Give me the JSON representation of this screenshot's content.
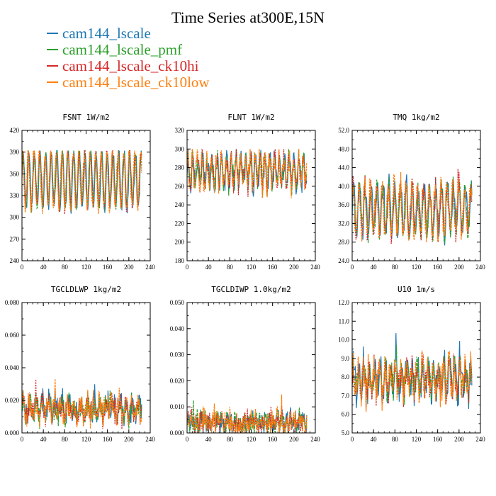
{
  "title": "Time Series at300E,15N",
  "legend": [
    {
      "label": "cam144_lscale",
      "color": "#1f77b4"
    },
    {
      "label": "cam144_lscale_pmf",
      "color": "#2ca02c"
    },
    {
      "label": "cam144_lscale_ck10hi",
      "color": "#d62728"
    },
    {
      "label": "cam144_lscale_ck10low",
      "color": "#ff7f0e"
    }
  ],
  "chart_data": [
    {
      "type": "line",
      "title": "FSNT   1W/m2",
      "xlim": [
        0,
        240
      ],
      "ylim": [
        240,
        420
      ],
      "xticks": [
        0,
        40,
        80,
        120,
        160,
        200,
        240
      ],
      "yticks": [
        240,
        270,
        300,
        330,
        360,
        390,
        420
      ],
      "ytick_labels": [
        "240",
        "270",
        "300",
        "330",
        "360",
        "390",
        "420"
      ],
      "n_points": 225,
      "mean": 352,
      "amp": 38,
      "noise": 8,
      "period": 10.5,
      "ymin_clip": 250,
      "ymax_clip": 392,
      "series_names": [
        "cam144_lscale",
        "cam144_lscale_pmf",
        "cam144_lscale_ck10hi",
        "cam144_lscale_ck10low"
      ]
    },
    {
      "type": "line",
      "title": "FLNT   1W/m2",
      "xlim": [
        0,
        240
      ],
      "ylim": [
        180,
        320
      ],
      "xticks": [
        0,
        40,
        80,
        120,
        160,
        200,
        240
      ],
      "yticks": [
        180,
        200,
        220,
        240,
        260,
        280,
        300,
        320
      ],
      "ytick_labels": [
        "180",
        "200",
        "220",
        "240",
        "260",
        "280",
        "300",
        "320"
      ],
      "n_points": 225,
      "mean": 276,
      "amp": 14,
      "noise": 12,
      "period": 9,
      "ymin_clip": 190,
      "ymax_clip": 300,
      "series_names": [
        "cam144_lscale",
        "cam144_lscale_pmf",
        "cam144_lscale_ck10hi",
        "cam144_lscale_ck10low"
      ]
    },
    {
      "type": "line",
      "title": "TMQ   1kg/m2",
      "xlim": [
        0,
        240
      ],
      "ylim": [
        24,
        52
      ],
      "xticks": [
        0,
        40,
        80,
        120,
        160,
        200,
        240
      ],
      "yticks": [
        24,
        28,
        32,
        36,
        40,
        44,
        48,
        52
      ],
      "ytick_labels": [
        "24.0",
        "28.0",
        "32.0",
        "36.0",
        "40.0",
        "44.0",
        "48.0",
        "52.0"
      ],
      "n_points": 225,
      "mean": 35,
      "amp": 5,
      "noise": 2.5,
      "period": 11,
      "ymin_clip": 25,
      "ymax_clip": 51,
      "series_names": [
        "cam144_lscale",
        "cam144_lscale_pmf",
        "cam144_lscale_ck10hi",
        "cam144_lscale_ck10low"
      ]
    },
    {
      "type": "line",
      "title": "TGCLDLWP   1kg/m2",
      "xlim": [
        0,
        240
      ],
      "ylim": [
        0,
        0.08
      ],
      "xticks": [
        0,
        40,
        80,
        120,
        160,
        200,
        240
      ],
      "yticks": [
        0,
        0.02,
        0.04,
        0.06,
        0.08
      ],
      "ytick_labels": [
        "0.000",
        "0.020",
        "0.040",
        "0.060",
        "0.080"
      ],
      "n_points": 225,
      "mean": 0.015,
      "amp": 0.004,
      "noise": 0.007,
      "period": 12,
      "ymin_clip": 0.002,
      "ymax_clip": 0.078,
      "series_names": [
        "cam144_lscale",
        "cam144_lscale_pmf",
        "cam144_lscale_ck10hi",
        "cam144_lscale_ck10low"
      ]
    },
    {
      "type": "line",
      "title": "TGCLDIWP   1.0kg/m2",
      "xlim": [
        0,
        240
      ],
      "ylim": [
        0,
        0.05
      ],
      "xticks": [
        0,
        40,
        80,
        120,
        160,
        200,
        240
      ],
      "yticks": [
        0,
        0.01,
        0.02,
        0.03,
        0.04,
        0.05
      ],
      "ytick_labels": [
        "0.000",
        "0.010",
        "0.020",
        "0.030",
        "0.040",
        "0.050"
      ],
      "n_points": 225,
      "mean": 0.004,
      "amp": 0.0015,
      "noise": 0.004,
      "period": 8,
      "ymin_clip": 0,
      "ymax_clip": 0.049,
      "series_names": [
        "cam144_lscale",
        "cam144_lscale_pmf",
        "cam144_lscale_ck10hi",
        "cam144_lscale_ck10low"
      ]
    },
    {
      "type": "line",
      "title": "U10   1m/s",
      "xlim": [
        0,
        240
      ],
      "ylim": [
        5,
        12
      ],
      "xticks": [
        0,
        40,
        80,
        120,
        160,
        200,
        240
      ],
      "yticks": [
        5,
        6,
        7,
        8,
        9,
        10,
        11,
        12
      ],
      "ytick_labels": [
        "5.0",
        "6.0",
        "7.0",
        "8.0",
        "9.0",
        "10.0",
        "11.0",
        "12.0"
      ],
      "n_points": 225,
      "mean": 7.9,
      "amp": 0.7,
      "noise": 0.8,
      "period": 10,
      "ymin_clip": 5.2,
      "ymax_clip": 11,
      "series_names": [
        "cam144_lscale",
        "cam144_lscale_pmf",
        "cam144_lscale_ck10hi",
        "cam144_lscale_ck10low"
      ]
    }
  ]
}
